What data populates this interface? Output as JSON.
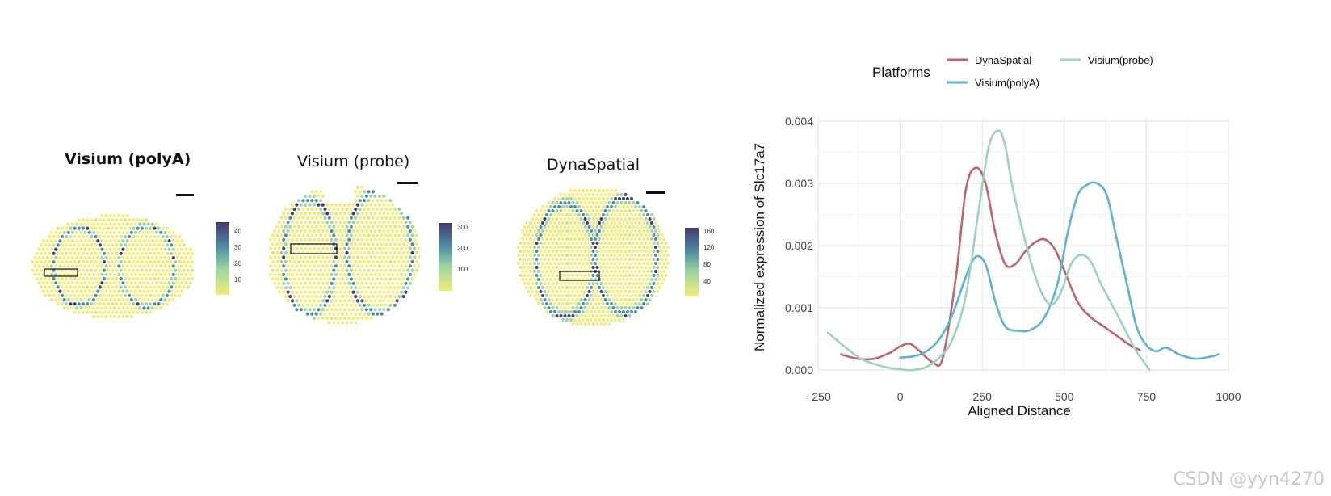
{
  "panels": [
    {
      "title": "Visium (polyA)",
      "colorbar_ticks": [
        "40",
        "30",
        "20",
        "10"
      ]
    },
    {
      "title": "Visium (probe)",
      "colorbar_ticks": [
        "300",
        "200",
        "100"
      ]
    },
    {
      "title": "DynaSpatial",
      "colorbar_ticks": [
        "160",
        "120",
        "80",
        "40"
      ]
    }
  ],
  "chart_data": {
    "type": "line",
    "title": "",
    "xlabel": "Aligned Distance",
    "ylabel": "Normalized expression of Slc17a7",
    "xlim": [
      -250,
      1000
    ],
    "ylim": [
      0,
      0.004
    ],
    "xticks": [
      "−250",
      "0",
      "250",
      "500",
      "750",
      "1000"
    ],
    "yticks": [
      "0.000",
      "0.001",
      "0.002",
      "0.003",
      "0.004"
    ],
    "legend": {
      "title": "Platforms",
      "position": "top",
      "labels": {
        "dyna": "DynaSpatial",
        "probe": "Visium(probe)",
        "polya": "Visium(polyA)"
      }
    },
    "series": [
      {
        "name": "DynaSpatial",
        "color": "#c0636b",
        "x": [
          -180,
          -130,
          -80,
          -30,
          0,
          30,
          60,
          100,
          130,
          170,
          200,
          230,
          260,
          290,
          320,
          350,
          380,
          410,
          440,
          470,
          500,
          540,
          580,
          620,
          660,
          700,
          730
        ],
        "y": [
          0.00025,
          0.00018,
          0.00018,
          0.00028,
          0.00038,
          0.00042,
          0.0003,
          0.00012,
          0.0002,
          0.0015,
          0.0029,
          0.00325,
          0.003,
          0.0022,
          0.0017,
          0.0017,
          0.0019,
          0.00205,
          0.0021,
          0.00195,
          0.0016,
          0.0011,
          0.00085,
          0.0007,
          0.00055,
          0.0004,
          0.00032
        ]
      },
      {
        "name": "Visium(polyA)",
        "color": "#5fb3cc",
        "x": [
          0,
          40,
          80,
          120,
          160,
          200,
          230,
          260,
          290,
          320,
          360,
          400,
          440,
          480,
          510,
          540,
          570,
          600,
          630,
          660,
          690,
          720,
          750,
          780,
          810,
          850,
          900,
          950,
          970
        ],
        "y": [
          0.0002,
          0.00022,
          0.0003,
          0.0005,
          0.0009,
          0.0015,
          0.00182,
          0.0017,
          0.0011,
          0.0007,
          0.00063,
          0.00065,
          0.00085,
          0.0014,
          0.0022,
          0.0028,
          0.00298,
          0.003,
          0.0028,
          0.0021,
          0.0014,
          0.0007,
          0.0004,
          0.0003,
          0.00036,
          0.00025,
          0.00018,
          0.00022,
          0.00025
        ]
      },
      {
        "name": "Visium(probe)",
        "color": "#9fd1c3",
        "x": [
          -220,
          -170,
          -120,
          -80,
          -40,
          0,
          40,
          80,
          120,
          160,
          200,
          240,
          270,
          300,
          320,
          340,
          370,
          400,
          430,
          460,
          490,
          520,
          550,
          580,
          610,
          640,
          680,
          720,
          760
        ],
        "y": [
          0.0006,
          0.00038,
          0.00018,
          0.0001,
          4e-05,
          1e-05,
          0.0,
          5e-05,
          0.0002,
          0.0005,
          0.0012,
          0.0026,
          0.0036,
          0.00385,
          0.0036,
          0.003,
          0.0023,
          0.0017,
          0.00125,
          0.00105,
          0.00125,
          0.0017,
          0.00185,
          0.00175,
          0.0014,
          0.0011,
          0.0007,
          0.0003,
          0.0
        ]
      }
    ]
  },
  "watermark": "CSDN @yyn4270"
}
